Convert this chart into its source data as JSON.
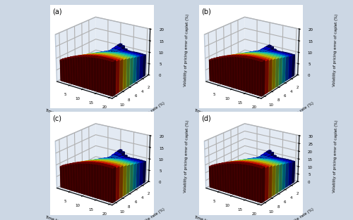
{
  "subplots": [
    "(a)",
    "(b)",
    "(c)",
    "(d)"
  ],
  "maturities": [
    1,
    2,
    3,
    4,
    5,
    6,
    7,
    8,
    9,
    10,
    11,
    12,
    13,
    14,
    15,
    16,
    17,
    18,
    19,
    20
  ],
  "strikes": [
    1.0,
    2.0,
    3.0,
    4.0,
    5.0,
    6.0,
    7.0,
    8.0,
    9.0,
    10.0
  ],
  "xlabel": "Time to maturity (years)",
  "ylabel": "Strike rate (%)",
  "zlabel": "Volatility of pricing error of caplet (%)",
  "background_color": "#ccd7e4",
  "panel_color": "#dde5f0",
  "elev": 22,
  "azim": -55,
  "zlims": [
    20,
    20,
    20,
    30
  ],
  "zticks_list": [
    [
      0,
      5,
      10,
      15,
      20
    ],
    [
      0,
      5,
      10,
      15,
      20
    ],
    [
      0,
      5,
      10,
      15,
      20
    ],
    [
      0,
      5,
      10,
      15,
      20,
      25,
      30
    ]
  ]
}
